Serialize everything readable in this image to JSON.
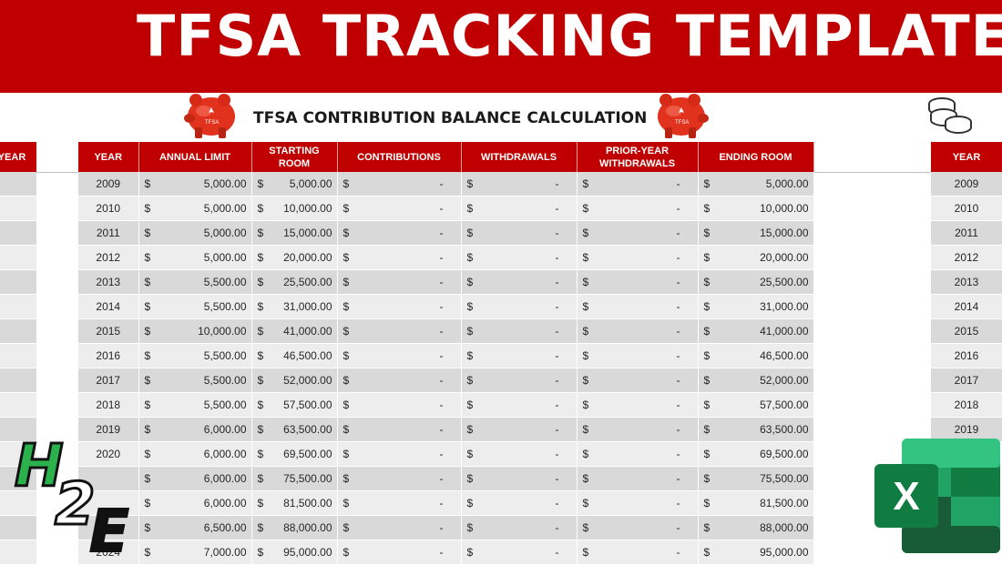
{
  "banner": {
    "title": "TFSA TRACKING TEMPLATE"
  },
  "subtitle": "TFSA CONTRIBUTION BALANCE CALCULATION",
  "left_partial": {
    "header": "YEAR"
  },
  "right_partial": {
    "header": "YEAR",
    "years": [
      "2009",
      "2010",
      "2011",
      "2012",
      "2013",
      "2014",
      "2015",
      "2016",
      "2017",
      "2018",
      "2019"
    ]
  },
  "columns": [
    "YEAR",
    "ANNUAL LIMIT",
    "STARTING ROOM",
    "CONTRIBUTIONS",
    "WITHDRAWALS",
    "PRIOR-YEAR WITHDRAWALS",
    "ENDING ROOM"
  ],
  "currency_symbol": "$",
  "dash": "-",
  "rows": [
    {
      "year": "2009",
      "limit": "5,000.00",
      "start": "5,000.00",
      "end": "5,000.00"
    },
    {
      "year": "2010",
      "limit": "5,000.00",
      "start": "10,000.00",
      "end": "10,000.00"
    },
    {
      "year": "2011",
      "limit": "5,000.00",
      "start": "15,000.00",
      "end": "15,000.00"
    },
    {
      "year": "2012",
      "limit": "5,000.00",
      "start": "20,000.00",
      "end": "20,000.00"
    },
    {
      "year": "2013",
      "limit": "5,500.00",
      "start": "25,500.00",
      "end": "25,500.00"
    },
    {
      "year": "2014",
      "limit": "5,500.00",
      "start": "31,000.00",
      "end": "31,000.00"
    },
    {
      "year": "2015",
      "limit": "10,000.00",
      "start": "41,000.00",
      "end": "41,000.00"
    },
    {
      "year": "2016",
      "limit": "5,500.00",
      "start": "46,500.00",
      "end": "46,500.00"
    },
    {
      "year": "2017",
      "limit": "5,500.00",
      "start": "52,000.00",
      "end": "52,000.00"
    },
    {
      "year": "2018",
      "limit": "5,500.00",
      "start": "57,500.00",
      "end": "57,500.00"
    },
    {
      "year": "2019",
      "limit": "6,000.00",
      "start": "63,500.00",
      "end": "63,500.00"
    },
    {
      "year": "2020",
      "limit": "6,000.00",
      "start": "69,500.00",
      "end": "69,500.00"
    },
    {
      "year": "",
      "limit": "6,000.00",
      "start": "75,500.00",
      "end": "75,500.00"
    },
    {
      "year": "",
      "limit": "6,000.00",
      "start": "81,500.00",
      "end": "81,500.00"
    },
    {
      "year": "",
      "limit": "6,500.00",
      "start": "88,000.00",
      "end": "88,000.00"
    },
    {
      "year": "2024",
      "limit": "7,000.00",
      "start": "95,000.00",
      "end": "95,000.00"
    }
  ],
  "logos": {
    "h2e": "H2E",
    "excel_letter": "X"
  },
  "colors": {
    "brand_red": "#c00000",
    "excel_green": "#107c41"
  }
}
